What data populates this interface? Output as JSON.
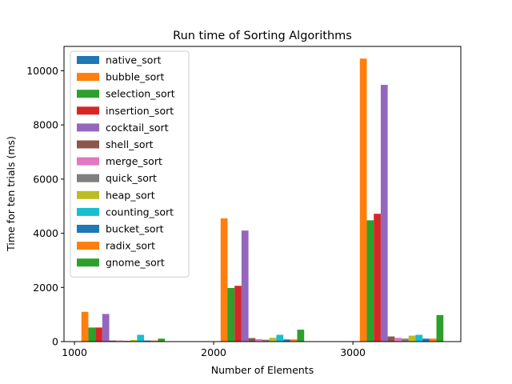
{
  "chart_data": {
    "type": "bar",
    "title": "Run time of Sorting Algorithms",
    "xlabel": "Number of Elements",
    "ylabel": "Time for ten trials (ms)",
    "xlim": [
      925,
      3775
    ],
    "ylim": [
      0,
      10900
    ],
    "xticks": [
      1000,
      2000,
      3000
    ],
    "yticks": [
      0,
      2000,
      4000,
      6000,
      8000,
      10000
    ],
    "xtick_labels": [
      "1000",
      "2000",
      "3000"
    ],
    "ytick_labels": [
      "0",
      "2000",
      "4000",
      "6000",
      "8000",
      "10000"
    ],
    "grid": false,
    "legend_position": "upper-left",
    "categories": [
      1000,
      2000,
      3000
    ],
    "series": [
      {
        "name": "native_sort",
        "color": "#1f77b4",
        "values": [
          10,
          12,
          15
        ]
      },
      {
        "name": "bubble_sort",
        "color": "#ff7f0e",
        "values": [
          1100,
          4550,
          10450
        ]
      },
      {
        "name": "selection_sort",
        "color": "#2ca02c",
        "values": [
          520,
          1980,
          4480
        ]
      },
      {
        "name": "insertion_sort",
        "color": "#d62728",
        "values": [
          520,
          2060,
          4720
        ]
      },
      {
        "name": "cocktail_sort",
        "color": "#9467bd",
        "values": [
          1020,
          4100,
          9480
        ]
      },
      {
        "name": "shell_sort",
        "color": "#8c564b",
        "values": [
          40,
          130,
          190
        ]
      },
      {
        "name": "merge_sort",
        "color": "#e377c2",
        "values": [
          40,
          90,
          140
        ]
      },
      {
        "name": "quick_sort",
        "color": "#7f7f7f",
        "values": [
          30,
          70,
          110
        ]
      },
      {
        "name": "heap_sort",
        "color": "#bcbd22",
        "values": [
          60,
          140,
          220
        ]
      },
      {
        "name": "counting_sort",
        "color": "#17becf",
        "values": [
          250,
          250,
          250
        ]
      },
      {
        "name": "bucket_sort",
        "color": "#1f77b4",
        "values": [
          40,
          80,
          110
        ]
      },
      {
        "name": "radix_sort",
        "color": "#ff7f0e",
        "values": [
          40,
          80,
          110
        ]
      },
      {
        "name": "gnome_sort",
        "color": "#2ca02c",
        "values": [
          110,
          440,
          980
        ]
      }
    ]
  }
}
